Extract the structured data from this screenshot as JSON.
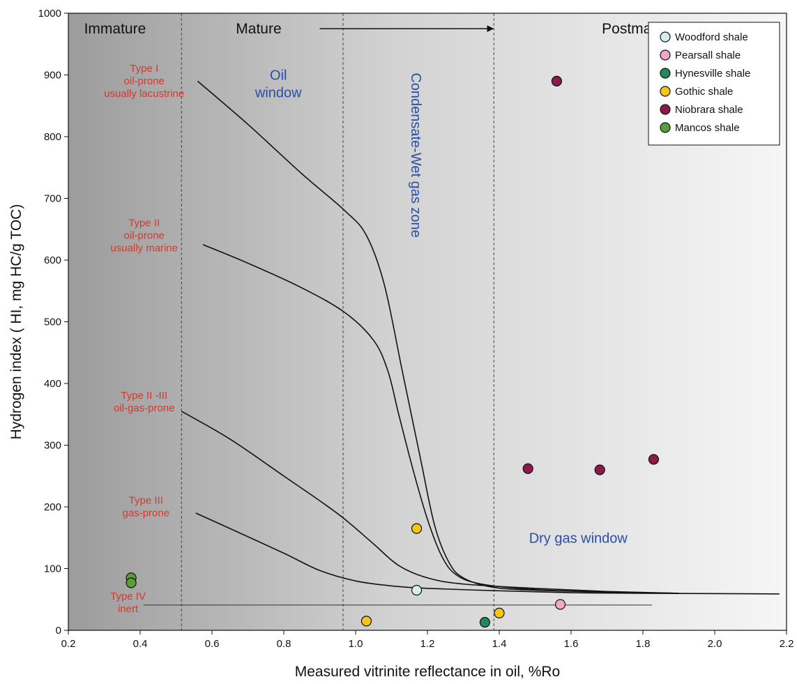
{
  "chart_data": {
    "type": "scatter",
    "xlabel": "Measured vitrinite reflectance in oil, %Ro",
    "ylabel": "Hydrogen index ( HI, mg HC/g TOC)",
    "xlim": [
      0.2,
      2.2
    ],
    "ylim": [
      0,
      1000
    ],
    "x_ticks": [
      "0.2",
      "0.4",
      "0.6",
      "0.8",
      "1.0",
      "1.2",
      "1.4",
      "1.6",
      "1.8",
      "2.0",
      "2.2"
    ],
    "y_ticks": [
      "0",
      "100",
      "200",
      "300",
      "400",
      "500",
      "600",
      "700",
      "800",
      "900",
      "1000"
    ],
    "grid": false,
    "legend_position": "top-right",
    "maturity_boundaries": [
      0.515,
      0.965,
      1.385
    ],
    "zone_labels": [
      {
        "text": "Immature",
        "x": 0.33,
        "y": 975
      },
      {
        "text": "Mature",
        "x": 0.73,
        "y": 975
      },
      {
        "text": "Postmature",
        "x": 1.79,
        "y": 975
      }
    ],
    "maturity_arrow": {
      "from_x": 0.9,
      "to_x": 1.385,
      "y": 975
    },
    "window_labels": [
      {
        "lines": [
          "Oil",
          "window"
        ],
        "x": 0.785,
        "y": 900
      },
      {
        "text": "Dry gas window",
        "x": 1.62,
        "y": 150
      }
    ],
    "vertical_label": {
      "text": "Condensate-Wet gas zone",
      "x": 1.155,
      "y": 770
    },
    "type_labels": [
      {
        "lines": [
          "Type I",
          "oil-prone",
          "usually lacustrine"
        ],
        "x": 0.415,
        "y": 905
      },
      {
        "lines": [
          "Type II",
          "oil-prone",
          "usually marine"
        ],
        "x": 0.415,
        "y": 655
      },
      {
        "lines": [
          "Type II -III",
          "oil-gas-prone"
        ],
        "x": 0.415,
        "y": 375
      },
      {
        "lines": [
          "Type III",
          "gas-prone"
        ],
        "x": 0.42,
        "y": 205
      },
      {
        "lines": [
          "Type IV",
          "inert"
        ],
        "x": 0.37,
        "y": 50
      }
    ],
    "curves": [
      {
        "name": "Type I",
        "points": [
          [
            0.56,
            890
          ],
          [
            0.7,
            820
          ],
          [
            0.85,
            740
          ],
          [
            0.97,
            680
          ],
          [
            1.03,
            640
          ],
          [
            1.08,
            560
          ],
          [
            1.13,
            420
          ],
          [
            1.18,
            280
          ],
          [
            1.22,
            170
          ],
          [
            1.26,
            110
          ],
          [
            1.3,
            85
          ],
          [
            1.38,
            70
          ],
          [
            1.5,
            65
          ],
          [
            1.7,
            62
          ],
          [
            1.9,
            60
          ]
        ]
      },
      {
        "name": "Type II",
        "points": [
          [
            0.575,
            625
          ],
          [
            0.7,
            595
          ],
          [
            0.85,
            555
          ],
          [
            0.97,
            515
          ],
          [
            1.05,
            470
          ],
          [
            1.09,
            420
          ],
          [
            1.12,
            350
          ],
          [
            1.16,
            260
          ],
          [
            1.2,
            180
          ],
          [
            1.24,
            120
          ],
          [
            1.28,
            90
          ],
          [
            1.35,
            75
          ],
          [
            1.5,
            66
          ],
          [
            1.7,
            62
          ],
          [
            1.9,
            60
          ]
        ]
      },
      {
        "name": "Type II-III",
        "points": [
          [
            0.515,
            355
          ],
          [
            0.65,
            310
          ],
          [
            0.8,
            250
          ],
          [
            0.9,
            210
          ],
          [
            0.97,
            180
          ],
          [
            1.05,
            140
          ],
          [
            1.12,
            105
          ],
          [
            1.2,
            85
          ],
          [
            1.3,
            75
          ],
          [
            1.5,
            68
          ],
          [
            1.7,
            63
          ],
          [
            1.9,
            60
          ]
        ]
      },
      {
        "name": "Type III",
        "points": [
          [
            0.555,
            190
          ],
          [
            0.65,
            165
          ],
          [
            0.8,
            125
          ],
          [
            0.9,
            97
          ],
          [
            1.0,
            80
          ],
          [
            1.1,
            72
          ],
          [
            1.2,
            68
          ],
          [
            1.4,
            64
          ],
          [
            1.6,
            61
          ],
          [
            1.8,
            60
          ],
          [
            2.18,
            59
          ]
        ]
      },
      {
        "name": "Type IV",
        "points": [
          [
            0.41,
            41
          ],
          [
            1.825,
            41
          ]
        ]
      }
    ],
    "series": [
      {
        "name": "Woodford shale",
        "color": "#d4eef0",
        "points": [
          [
            1.17,
            65
          ]
        ]
      },
      {
        "name": "Pearsall shale",
        "color": "#f4a6c6",
        "points": [
          [
            1.57,
            42
          ]
        ]
      },
      {
        "name": "Hynesville shale",
        "color": "#1f8a5b",
        "points": [
          [
            1.36,
            13
          ]
        ]
      },
      {
        "name": "Gothic shale",
        "color": "#f5c518",
        "points": [
          [
            1.17,
            165
          ],
          [
            1.03,
            15
          ],
          [
            1.4,
            28
          ]
        ]
      },
      {
        "name": "Niobrara shale",
        "color": "#8b1a4a",
        "points": [
          [
            1.56,
            890
          ],
          [
            1.48,
            262
          ],
          [
            1.68,
            260
          ],
          [
            1.83,
            277
          ]
        ]
      },
      {
        "name": "Mancos shale",
        "color": "#5a9e3a",
        "points": [
          [
            0.375,
            85
          ],
          [
            0.375,
            77
          ]
        ]
      }
    ]
  }
}
